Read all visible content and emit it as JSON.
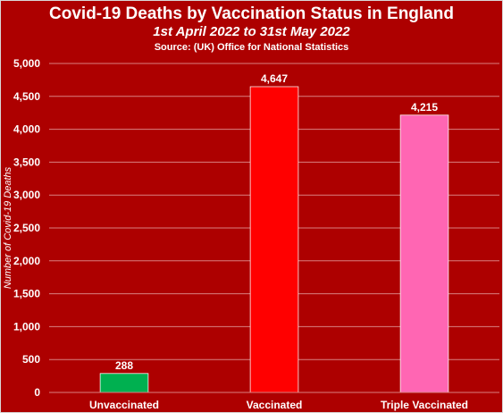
{
  "colors": {
    "background": "#ad0000",
    "gridline": "#d98080",
    "text": "#ffffff",
    "unvaccinated": "#00b050",
    "vaccinated": "#ff0000",
    "triple_vaccinated": "#ff66b3"
  },
  "chart_data": {
    "type": "bar",
    "title": "Covid-19 Deaths by Vaccination Status in England",
    "subtitle": "1st April 2022 to 31st May 2022",
    "source": "Source: (UK) Office for National Statistics",
    "xlabel": "",
    "ylabel": "Number of Covid-19 Deaths",
    "categories": [
      "Unvaccinated",
      "Vaccinated",
      "Triple Vaccinated"
    ],
    "values": [
      288,
      4647,
      4215
    ],
    "data_labels": [
      "288",
      "4,647",
      "4,215"
    ],
    "bar_colors": [
      "#00b050",
      "#ff0000",
      "#ff66b3"
    ],
    "ylim": [
      0,
      5000
    ],
    "yticks": [
      0,
      500,
      1000,
      1500,
      2000,
      2500,
      3000,
      3500,
      4000,
      4500,
      5000
    ],
    "ytick_labels": [
      "0",
      "500",
      "1,000",
      "1,500",
      "2,000",
      "2,500",
      "3,000",
      "3,500",
      "4,000",
      "4,500",
      "5,000"
    ],
    "grid": true,
    "legend": "none"
  }
}
